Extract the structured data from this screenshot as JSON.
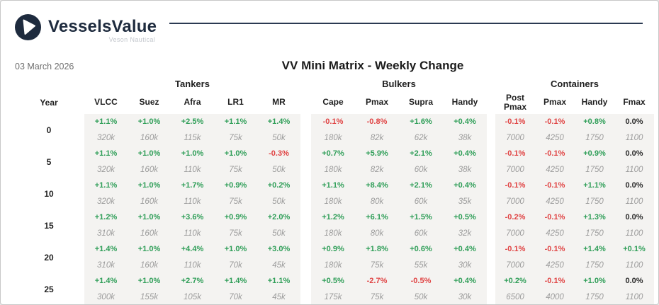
{
  "brand": {
    "name": "VesselsValue",
    "tagline": "Veson Nautical"
  },
  "date": "03 March 2026",
  "title": "VV Mini Matrix - Weekly Change",
  "year_label": "Year",
  "groups": [
    {
      "label": "Tankers",
      "columns": [
        "VLCC",
        "Suez",
        "Afra",
        "LR1",
        "MR"
      ]
    },
    {
      "label": "Bulkers",
      "columns": [
        "Cape",
        "Pmax",
        "Supra",
        "Handy"
      ]
    },
    {
      "label": "Containers",
      "columns": [
        "Post Pmax",
        "Pmax",
        "Handy",
        "Fmax"
      ]
    }
  ],
  "rows": [
    {
      "year": "0",
      "cells": [
        [
          "+1.1%",
          "320k"
        ],
        [
          "+1.0%",
          "160k"
        ],
        [
          "+2.5%",
          "115k"
        ],
        [
          "+1.1%",
          "75k"
        ],
        [
          "+1.4%",
          "50k"
        ],
        [
          "-0.1%",
          "180k"
        ],
        [
          "-0.8%",
          "82k"
        ],
        [
          "+1.6%",
          "62k"
        ],
        [
          "+0.4%",
          "38k"
        ],
        [
          "-0.1%",
          "7000"
        ],
        [
          "-0.1%",
          "4250"
        ],
        [
          "+0.8%",
          "1750"
        ],
        [
          "0.0%",
          "1100"
        ]
      ]
    },
    {
      "year": "5",
      "cells": [
        [
          "+1.1%",
          "320k"
        ],
        [
          "+1.0%",
          "160k"
        ],
        [
          "+1.0%",
          "110k"
        ],
        [
          "+1.0%",
          "75k"
        ],
        [
          "-0.3%",
          "50k"
        ],
        [
          "+0.7%",
          "180k"
        ],
        [
          "+5.9%",
          "82k"
        ],
        [
          "+2.1%",
          "60k"
        ],
        [
          "+0.4%",
          "38k"
        ],
        [
          "-0.1%",
          "7000"
        ],
        [
          "-0.1%",
          "4250"
        ],
        [
          "+0.9%",
          "1750"
        ],
        [
          "0.0%",
          "1100"
        ]
      ]
    },
    {
      "year": "10",
      "cells": [
        [
          "+1.1%",
          "320k"
        ],
        [
          "+1.0%",
          "160k"
        ],
        [
          "+1.7%",
          "110k"
        ],
        [
          "+0.9%",
          "75k"
        ],
        [
          "+0.2%",
          "50k"
        ],
        [
          "+1.1%",
          "180k"
        ],
        [
          "+8.4%",
          "80k"
        ],
        [
          "+2.1%",
          "60k"
        ],
        [
          "+0.4%",
          "35k"
        ],
        [
          "-0.1%",
          "7000"
        ],
        [
          "-0.1%",
          "4250"
        ],
        [
          "+1.1%",
          "1750"
        ],
        [
          "0.0%",
          "1100"
        ]
      ]
    },
    {
      "year": "15",
      "cells": [
        [
          "+1.2%",
          "310k"
        ],
        [
          "+1.0%",
          "160k"
        ],
        [
          "+3.6%",
          "110k"
        ],
        [
          "+0.9%",
          "75k"
        ],
        [
          "+2.0%",
          "50k"
        ],
        [
          "+1.2%",
          "180k"
        ],
        [
          "+6.1%",
          "80k"
        ],
        [
          "+1.5%",
          "60k"
        ],
        [
          "+0.5%",
          "32k"
        ],
        [
          "-0.2%",
          "7000"
        ],
        [
          "-0.1%",
          "4250"
        ],
        [
          "+1.3%",
          "1750"
        ],
        [
          "0.0%",
          "1100"
        ]
      ]
    },
    {
      "year": "20",
      "cells": [
        [
          "+1.4%",
          "310k"
        ],
        [
          "+1.0%",
          "160k"
        ],
        [
          "+4.4%",
          "110k"
        ],
        [
          "+1.0%",
          "70k"
        ],
        [
          "+3.0%",
          "45k"
        ],
        [
          "+0.9%",
          "180k"
        ],
        [
          "+1.8%",
          "75k"
        ],
        [
          "+0.6%",
          "55k"
        ],
        [
          "+0.4%",
          "30k"
        ],
        [
          "-0.1%",
          "7000"
        ],
        [
          "-0.1%",
          "4250"
        ],
        [
          "+1.4%",
          "1750"
        ],
        [
          "+0.1%",
          "1100"
        ]
      ]
    },
    {
      "year": "25",
      "cells": [
        [
          "+1.4%",
          "300k"
        ],
        [
          "+1.0%",
          "155k"
        ],
        [
          "+2.7%",
          "105k"
        ],
        [
          "+1.4%",
          "70k"
        ],
        [
          "+1.1%",
          "45k"
        ],
        [
          "+0.5%",
          "175k"
        ],
        [
          "-2.7%",
          "75k"
        ],
        [
          "-0.5%",
          "50k"
        ],
        [
          "+0.4%",
          "30k"
        ],
        [
          "+0.2%",
          "6500"
        ],
        [
          "-0.1%",
          "4000"
        ],
        [
          "+1.0%",
          "1750"
        ],
        [
          "0.0%",
          "1100"
        ]
      ]
    }
  ],
  "colors": {
    "positive": "#2f9e58",
    "negative": "#e04343",
    "neutral": "#2b2b2b",
    "value_text": "#9c9c9c",
    "band": "#f4f3f1",
    "brand_navy": "#1e2b3e"
  }
}
